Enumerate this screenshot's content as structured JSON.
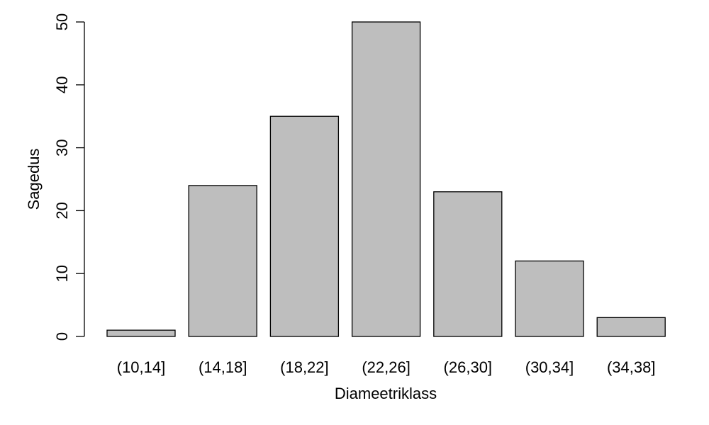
{
  "chart_data": {
    "type": "bar",
    "categories": [
      "(10,14]",
      "(14,18]",
      "(18,22]",
      "(22,26]",
      "(26,30]",
      "(30,34]",
      "(34,38]"
    ],
    "values": [
      1,
      24,
      35,
      50,
      23,
      12,
      3
    ],
    "title": "",
    "xlabel": "Diameetriklass",
    "ylabel": "Sagedus",
    "ylim": [
      0,
      50
    ],
    "yticks": [
      0,
      10,
      20,
      30,
      40,
      50
    ],
    "grid": false,
    "bar_color": "#bebebe",
    "bar_border_color": "#000000"
  }
}
